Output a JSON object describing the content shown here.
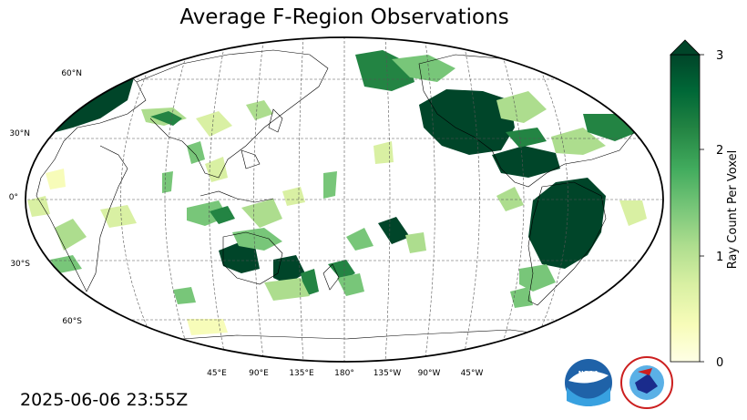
{
  "title": "Average F-Region Observations",
  "timestamp": "2025-06-06 23:55Z",
  "map": {
    "projection": "Robinson",
    "central_longitude_label": "180°",
    "latitude_labels": [
      "60°N",
      "30°N",
      "0°",
      "30°S",
      "60°S"
    ],
    "longitude_labels": [
      "45°E",
      "90°E",
      "135°E",
      "180°",
      "135°W",
      "90°W",
      "45°W"
    ],
    "gridlines": "dashed",
    "ocean_color": "#ffffff",
    "coastline_color": "#000000"
  },
  "colorbar": {
    "label": "Ray Count Per Voxel",
    "ticks": [
      "0",
      "1",
      "2",
      "3"
    ],
    "range": [
      0,
      3
    ],
    "extend": "max",
    "cmap": "YlGn",
    "colors": [
      "#ffffe5",
      "#f7fcb9",
      "#d9f0a3",
      "#addd8e",
      "#78c679",
      "#41ab5d",
      "#238443",
      "#006837",
      "#004529"
    ]
  },
  "logos": [
    {
      "name": "noaa-logo",
      "text": "NOAA"
    },
    {
      "name": "nws-logo",
      "text": "NATIONAL WEATHER SERVICE"
    }
  ]
}
